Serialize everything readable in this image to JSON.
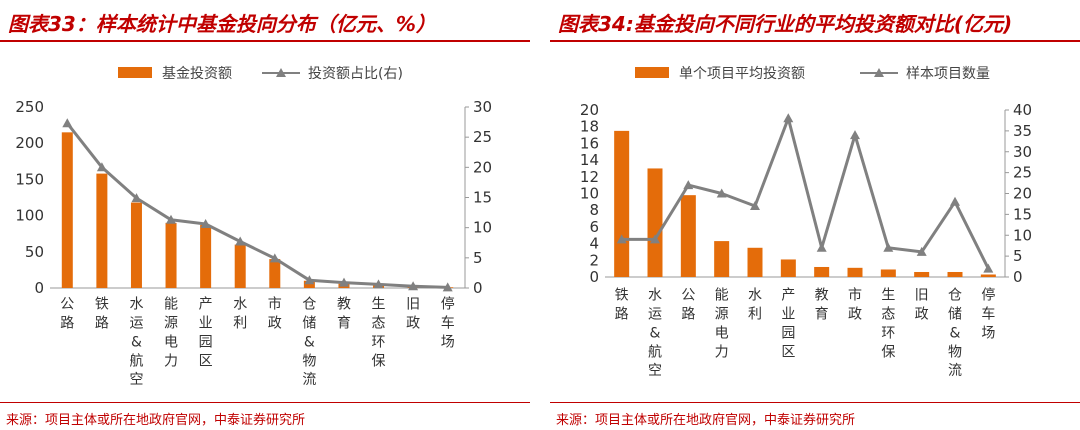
{
  "panels": [
    {
      "title": "图表33：样本统计中基金投向分布（亿元、%）",
      "source": "来源：项目主体或所在地政府官网，中泰证券研究所"
    },
    {
      "title": "图表34:基金投向不同行业的平均投资额对比(亿元)",
      "source": "来源：项目主体或所在地政府官网，中泰证券研究所"
    }
  ],
  "colors": {
    "bar": "#e46c0a",
    "line": "#808080",
    "title": "#c00000"
  },
  "chart_data": [
    {
      "type": "bar",
      "title": "图表33：样本统计中基金投向分布（亿元、%）",
      "categories": [
        "公路",
        "铁路",
        "水运&航空",
        "能源电力",
        "产业园区",
        "水利",
        "市政",
        "仓储&物流",
        "教育",
        "生态环保",
        "旧政",
        "停车场"
      ],
      "series": [
        {
          "name": "基金投资额",
          "type": "bar",
          "axis": "left",
          "values": [
            215,
            158,
            118,
            90,
            87,
            60,
            40,
            10,
            6,
            4,
            2,
            1
          ]
        },
        {
          "name": "投资额占比(右)",
          "type": "line",
          "axis": "right",
          "values": [
            27.3,
            20.0,
            14.9,
            11.3,
            10.6,
            7.7,
            4.9,
            1.3,
            0.9,
            0.6,
            0.3,
            0.1
          ]
        }
      ],
      "left_axis": {
        "min": 0,
        "max": 250,
        "ticks": [
          "0",
          "50",
          "100",
          "150",
          "200",
          "250"
        ]
      },
      "right_axis": {
        "min": 0,
        "max": 30,
        "ticks": [
          "0",
          "5",
          "10",
          "15",
          "20",
          "25",
          "30"
        ]
      },
      "legend_placement": "top",
      "grid": false
    },
    {
      "type": "bar",
      "title": "图表34:基金投向不同行业的平均投资额对比(亿元)",
      "categories": [
        "铁路",
        "水运&航空",
        "公路",
        "能源电力",
        "水利",
        "产业园区",
        "教育",
        "市政",
        "生态环保",
        "旧政",
        "仓储&物流",
        "停车场"
      ],
      "series": [
        {
          "name": "单个项目平均投资额",
          "type": "bar",
          "axis": "left",
          "values": [
            17.5,
            13.0,
            9.8,
            4.3,
            3.5,
            2.1,
            1.2,
            1.1,
            0.9,
            0.6,
            0.6,
            0.3
          ]
        },
        {
          "name": "样本项目数量",
          "type": "line",
          "axis": "right",
          "values": [
            9,
            9,
            22,
            20,
            17,
            38,
            7,
            34,
            7,
            6,
            18,
            2
          ]
        }
      ],
      "left_axis": {
        "min": 0,
        "max": 20,
        "ticks": [
          "0",
          "2",
          "4",
          "6",
          "8",
          "10",
          "12",
          "14",
          "16",
          "18",
          "20"
        ]
      },
      "right_axis": {
        "min": 0,
        "max": 40,
        "ticks": [
          "0",
          "5",
          "10",
          "15",
          "20",
          "25",
          "30",
          "35",
          "40"
        ]
      },
      "legend_placement": "top",
      "grid": false
    }
  ]
}
